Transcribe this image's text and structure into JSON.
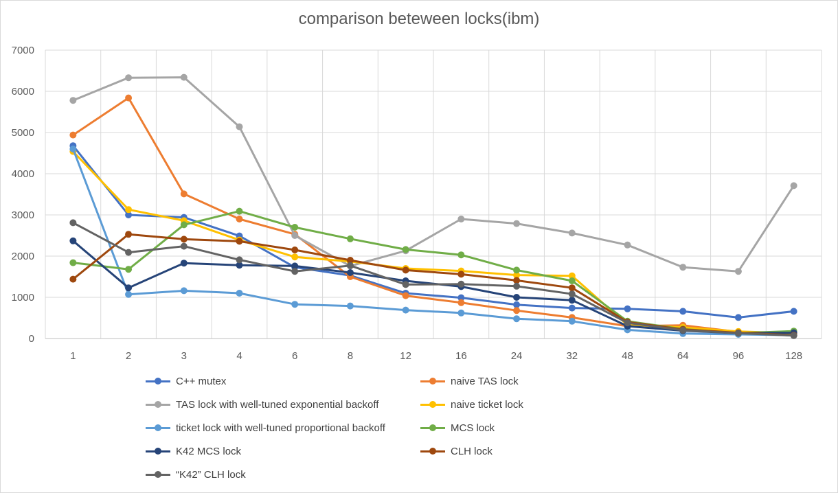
{
  "chart_data": {
    "type": "line",
    "title": "comparison beteween locks(ibm)",
    "xlabel": "",
    "ylabel": "",
    "categories": [
      "1",
      "2",
      "3",
      "4",
      "6",
      "8",
      "12",
      "16",
      "24",
      "32",
      "48",
      "64",
      "96",
      "128"
    ],
    "ylim": [
      0,
      7000
    ],
    "yticks": [
      "0",
      "1000",
      "2000",
      "3000",
      "4000",
      "5000",
      "6000",
      "7000"
    ],
    "grid": true,
    "legend_position": "bottom",
    "series": [
      {
        "name": "C++ mutex",
        "color": "#4472c4",
        "values": [
          4680,
          3000,
          2940,
          2490,
          1730,
          1530,
          1100,
          990,
          820,
          740,
          720,
          660,
          510,
          660
        ]
      },
      {
        "name": "naive TAS lock",
        "color": "#ed7d31",
        "values": [
          4940,
          5840,
          3510,
          2900,
          2530,
          1500,
          1040,
          870,
          680,
          510,
          300,
          320,
          160,
          90
        ]
      },
      {
        "name": "TAS lock with well-tuned exponential backoff",
        "color": "#a5a5a5",
        "values": [
          5780,
          6330,
          6340,
          5140,
          2500,
          1760,
          2130,
          2900,
          2790,
          2560,
          2270,
          1730,
          1630,
          3710
        ]
      },
      {
        "name": "naive ticket lock",
        "color": "#ffc000",
        "values": [
          4540,
          3130,
          2860,
          2390,
          1980,
          1870,
          1700,
          1640,
          1540,
          1520,
          330,
          270,
          170,
          130
        ]
      },
      {
        "name": "ticket lock with well-tuned proportional backoff",
        "color": "#5b9bd5",
        "values": [
          4600,
          1070,
          1160,
          1100,
          830,
          790,
          690,
          620,
          480,
          420,
          210,
          120,
          100,
          80
        ]
      },
      {
        "name": "MCS lock",
        "color": "#70ad47",
        "values": [
          1840,
          1680,
          2760,
          3090,
          2700,
          2420,
          2160,
          2030,
          1660,
          1400,
          420,
          230,
          130,
          180
        ]
      },
      {
        "name": "K42 MCS lock",
        "color": "#264478",
        "values": [
          2370,
          1230,
          1830,
          1780,
          1760,
          1600,
          1400,
          1260,
          1000,
          930,
          300,
          190,
          130,
          140
        ]
      },
      {
        "name": "CLH lock",
        "color": "#9e480e",
        "values": [
          1440,
          2530,
          2410,
          2360,
          2150,
          1900,
          1660,
          1560,
          1410,
          1230,
          400,
          220,
          140,
          80
        ]
      },
      {
        "name": "“K42” CLH lock",
        "color": "#636363",
        "values": [
          2810,
          2090,
          2240,
          1910,
          1630,
          1770,
          1310,
          1320,
          1270,
          1080,
          380,
          200,
          130,
          70
        ]
      }
    ]
  }
}
